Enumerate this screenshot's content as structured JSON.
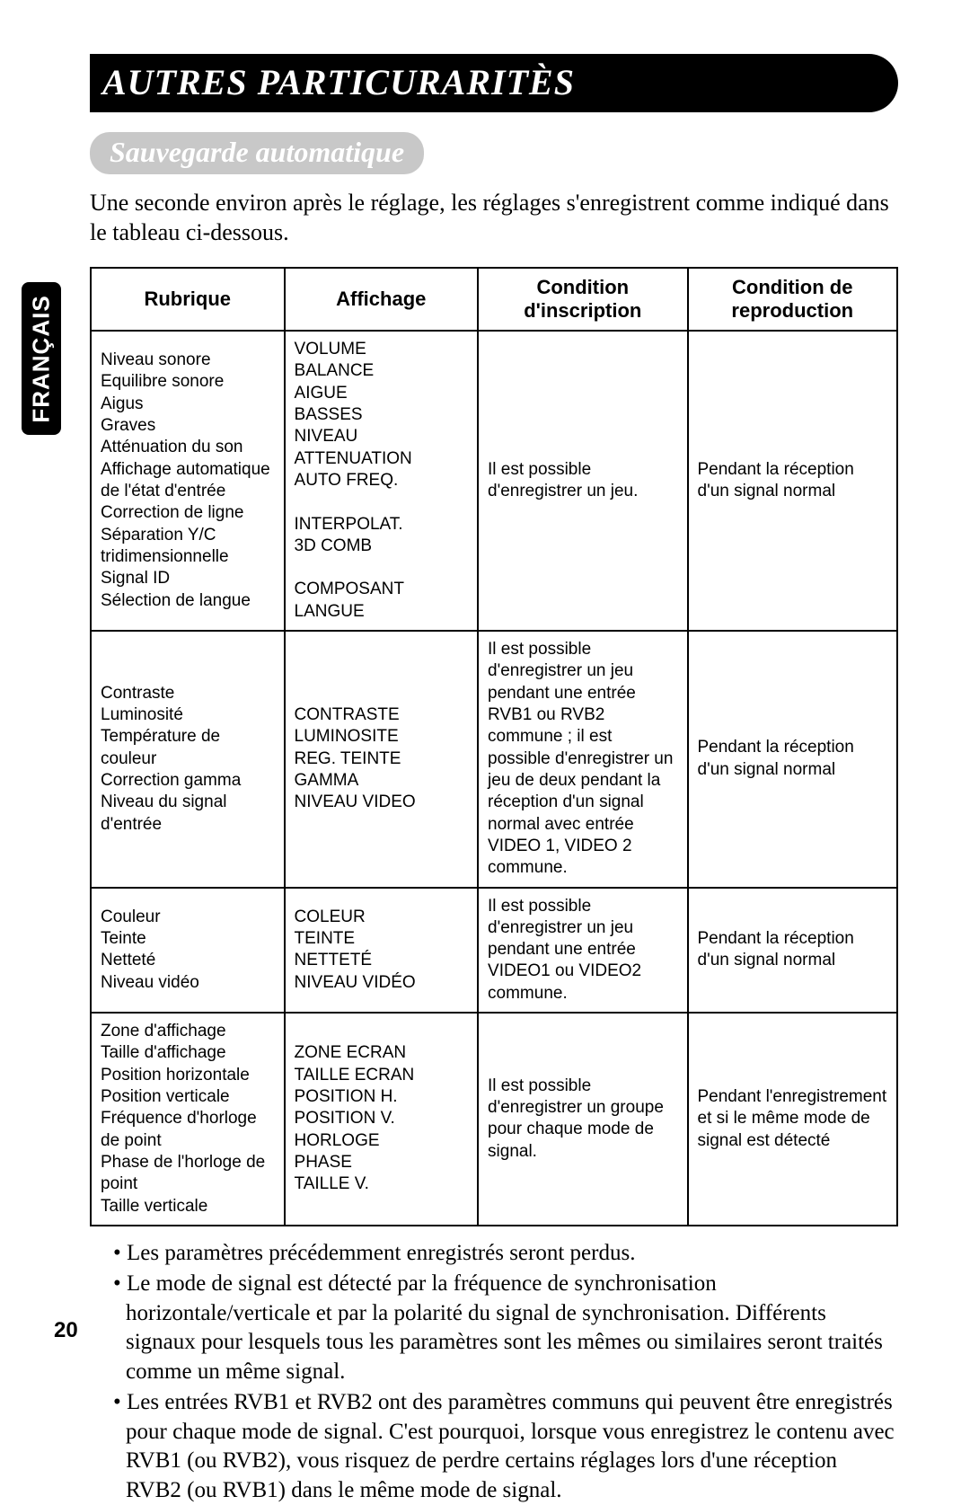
{
  "title": "AUTRES PARTICURARITÈS",
  "subtitle": "Sauvegarde automatique",
  "intro": "Une seconde environ après le réglage, les réglages s'enregistrent comme indiqué dans le tableau ci-dessous.",
  "side_tab": "FRANÇAIS",
  "table": {
    "headers": [
      "Rubrique",
      "Affichage",
      "Condition d'inscription",
      "Condition de reproduction"
    ],
    "rows": [
      {
        "rubrique": "Niveau sonore\nEquilibre sonore\n            Aigus\n            Graves\nAtténuation du son\nAffichage automatique de l'état d'entrée\nCorrection de ligne\nSéparation Y/C tridimensionnelle\nSignal ID\nSélection de langue",
        "affichage": "VOLUME\nBALANCE\nAIGUE\nBASSES\nNIVEAU ATTENUATION\nAUTO FREQ.\n\nINTERPOLAT.\n3D COMB\n\nCOMPOSANT\nLANGUE",
        "cond_inscr": "Il est possible d'enregistrer un jeu.",
        "cond_repro": "Pendant la réception d'un signal normal"
      },
      {
        "rubrique": "Contraste\nLuminosité\nTempérature de couleur\nCorrection gamma\nNiveau du signal d'entrée",
        "affichage": "CONTRASTE\nLUMINOSITE\nREG. TEINTE\nGAMMA\nNIVEAU VIDEO",
        "cond_inscr": "Il est possible d'enregistrer un jeu pendant une entrée RVB1 ou RVB2 commune ; il est possible d'enregistrer un jeu de deux pendant la réception d'un signal normal avec entrée VIDEO 1, VIDEO 2 commune.",
        "cond_repro": "Pendant la réception d'un signal normal"
      },
      {
        "rubrique": "Couleur\nTeinte\nNetteté\nNiveau vidéo",
        "affichage": "COLEUR\nTEINTE\nNETTETÉ\nNIVEAU VIDÉO",
        "cond_inscr": "Il est possible d'enregistrer un jeu pendant une entrée VIDEO1 ou VIDEO2 commune.",
        "cond_repro": "Pendant la réception d'un signal normal"
      },
      {
        "rubrique": "Zone d'affichage\nTaille d'affichage\nPosition horizontale\nPosition verticale\nFréquence d'horloge de point\nPhase de l'horloge de point\nTaille verticale",
        "affichage": "ZONE ECRAN\nTAILLE ECRAN\nPOSITION H.\nPOSITION V.\nHORLOGE\nPHASE\nTAILLE V.",
        "cond_inscr": "Il est possible d'enregistrer un groupe pour chaque mode de signal.",
        "cond_repro": "Pendant l'enregistrement et si le même mode de signal est détecté"
      }
    ]
  },
  "notes": [
    "Les paramètres précédemment enregistrés seront perdus.",
    "Le mode de signal est détecté par la fréquence de synchronisation horizontale/verticale et par la polarité du signal de synchronisation. Différents signaux pour lesquels tous les paramètres sont les mêmes ou similaires seront traités comme un même signal.",
    "Les entrées RVB1 et RVB2 ont des paramètres communs qui peuvent être enregistrés pour chaque mode de signal. C'est pourquoi, lorsque vous enregistrez le contenu avec RVB1 (ou RVB2), vous risquez de perdre certains réglages lors d'une réception RVB2 (ou RVB1) dans le même mode de signal."
  ],
  "page_number": "20",
  "colors": {
    "black": "#000000",
    "white": "#ffffff",
    "subtitle_bg": "#c8c8c8"
  }
}
